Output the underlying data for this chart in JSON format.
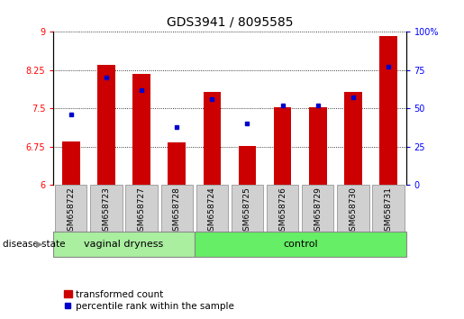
{
  "title": "GDS3941 / 8095585",
  "samples": [
    "GSM658722",
    "GSM658723",
    "GSM658727",
    "GSM658728",
    "GSM658724",
    "GSM658725",
    "GSM658726",
    "GSM658729",
    "GSM658730",
    "GSM658731"
  ],
  "red_values": [
    6.85,
    8.35,
    8.18,
    6.83,
    7.82,
    6.77,
    7.52,
    7.52,
    7.82,
    8.92
  ],
  "blue_values": [
    46,
    70,
    62,
    38,
    56,
    40,
    52,
    52,
    57,
    77
  ],
  "ylim_left": [
    6,
    9
  ],
  "ylim_right": [
    0,
    100
  ],
  "yticks_left": [
    6,
    6.75,
    7.5,
    8.25,
    9
  ],
  "yticks_right": [
    0,
    25,
    50,
    75,
    100
  ],
  "group1_label": "vaginal dryness",
  "group2_label": "control",
  "group1_count": 4,
  "group2_count": 6,
  "legend_red": "transformed count",
  "legend_blue": "percentile rank within the sample",
  "disease_state_label": "disease state",
  "bar_color": "#cc0000",
  "dot_color": "#0000cc",
  "group1_bg": "#aaeea0",
  "group2_bg": "#66ee66",
  "tick_bg": "#d0d0d0",
  "title_fontsize": 10,
  "tick_fontsize": 7,
  "label_fontsize": 8
}
